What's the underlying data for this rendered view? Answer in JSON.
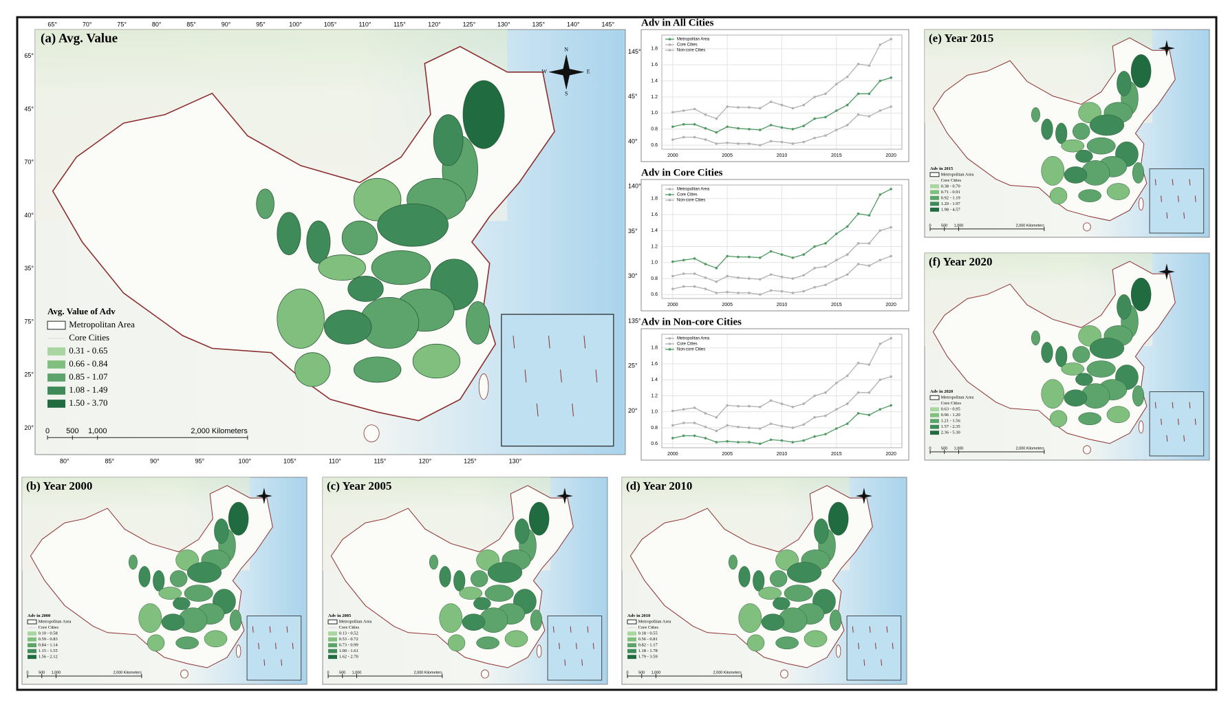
{
  "maps": [
    {
      "title": "(a) Avg. Value",
      "legend": {
        "title": "Avg. Value of Adv",
        "metro": "Metropolitan Area",
        "core": "Core Cities",
        "classes": [
          "0.31 - 0.65",
          "0.66 - 0.84",
          "0.85 - 1.07",
          "1.08 - 1.49",
          "1.50 - 3.70"
        ],
        "colors": [
          "#a9d6a0",
          "#80bf7e",
          "#5ca46c",
          "#3e8a58",
          "#216b40"
        ]
      },
      "scale": [
        "0",
        "500",
        "1,000",
        "2,000 Kilometers"
      ],
      "compass": [
        "N",
        "E",
        "S",
        "W"
      ],
      "lon_bottom": [
        "80°",
        "85°",
        "90°",
        "95°",
        "100°",
        "105°",
        "110°",
        "115°",
        "120°",
        "125°",
        "130°"
      ],
      "lon_top": [
        "65°",
        "70°",
        "75°",
        "80°",
        "85°",
        "90°",
        "95°",
        "100°",
        "105°",
        "110°",
        "115°",
        "120°",
        "125°",
        "130°",
        "135°",
        "140°",
        "145°"
      ],
      "lat_left": [
        "65°",
        "45°",
        "70°",
        "40°",
        "35°",
        "75°",
        "25°",
        "20°"
      ],
      "lat_right": [
        "145°",
        "45°",
        "40°",
        "140°",
        "35°",
        "30°",
        "135°",
        "25°",
        "20°"
      ]
    },
    {
      "title": "(b) Year 2000",
      "legend": {
        "title": "Adv in 2000",
        "metro": "Metropolitan Area",
        "core": "Core Cities",
        "classes": [
          "0.10 - 0.58",
          "0.59 - 0.83",
          "0.84 - 1.14",
          "1.15 - 1.55",
          "1.56 - 2.12"
        ],
        "colors": [
          "#a9d6a0",
          "#80bf7e",
          "#5ca46c",
          "#3e8a58",
          "#216b40"
        ]
      },
      "scale": [
        "0",
        "500",
        "1,000",
        "2,000 Kilometers"
      ]
    },
    {
      "title": "(c) Year 2005",
      "legend": {
        "title": "Adv in 2005",
        "metro": "Metropolitan Area",
        "core": "Core Cities",
        "classes": [
          "0.13 - 0.52",
          "0.53 - 0.72",
          "0.73 - 0.99",
          "1.00 - 1.61",
          "1.62 - 2.70"
        ],
        "colors": [
          "#a9d6a0",
          "#80bf7e",
          "#5ca46c",
          "#3e8a58",
          "#216b40"
        ]
      },
      "scale": [
        "0",
        "500",
        "1,000",
        "2,000 Kilometers"
      ]
    },
    {
      "title": "(d) Year 2010",
      "legend": {
        "title": "Adv in 2010",
        "metro": "Metropolitan Area",
        "core": "Core Cities",
        "classes": [
          "0.18 - 0.55",
          "0.56 - 0.81",
          "0.82 - 1.17",
          "1.18 - 1.78",
          "1.79 - 3.59"
        ],
        "colors": [
          "#a9d6a0",
          "#80bf7e",
          "#5ca46c",
          "#3e8a58",
          "#216b40"
        ]
      },
      "scale": [
        "0",
        "500",
        "1,000",
        "2,000 Kilometers"
      ]
    },
    {
      "title": "(e) Year 2015",
      "legend": {
        "title": "Adv in 2015",
        "metro": "Metropolitan Area",
        "core": "Core Cities",
        "classes": [
          "0.38 - 0.70",
          "0.71 - 0.91",
          "0.92 - 1.19",
          "1.20 - 1.97",
          "1.98 - 4.57"
        ],
        "colors": [
          "#a9d6a0",
          "#80bf7e",
          "#5ca46c",
          "#3e8a58",
          "#216b40"
        ]
      },
      "scale": [
        "0",
        "500",
        "1,000",
        "2,000 Kilometers"
      ]
    },
    {
      "title": "(f) Year 2020",
      "legend": {
        "title": "Adv in 2020",
        "metro": "Metropolitan Area",
        "core": "Core Cities",
        "classes": [
          "0.63 - 0.95",
          "0.96 - 1.20",
          "1.21 - 1.56",
          "1.57 - 2.35",
          "2.36 - 5.30"
        ],
        "colors": [
          "#a9d6a0",
          "#80bf7e",
          "#5ca46c",
          "#3e8a58",
          "#216b40"
        ]
      },
      "scale": [
        "0",
        "500",
        "1,000",
        "2,000 Kilometers"
      ]
    }
  ],
  "chart_data": [
    {
      "type": "line",
      "title": "Adv in All Cities",
      "x": [
        2000,
        2001,
        2002,
        2003,
        2004,
        2005,
        2006,
        2007,
        2008,
        2009,
        2010,
        2011,
        2012,
        2013,
        2014,
        2015,
        2016,
        2017,
        2018,
        2019,
        2020
      ],
      "series": [
        {
          "name": "Metropolitan Area",
          "color": "#4f9a62",
          "values": [
            0.83,
            0.86,
            0.86,
            0.81,
            0.76,
            0.83,
            0.81,
            0.8,
            0.79,
            0.85,
            0.82,
            0.8,
            0.84,
            0.93,
            0.95,
            1.03,
            1.1,
            1.24,
            1.24,
            1.4,
            1.44
          ]
        },
        {
          "name": "Core Cities",
          "color": "#b0b0b0",
          "values": [
            1.01,
            1.03,
            1.05,
            0.98,
            0.93,
            1.08,
            1.07,
            1.07,
            1.06,
            1.14,
            1.1,
            1.06,
            1.1,
            1.2,
            1.24,
            1.36,
            1.45,
            1.61,
            1.59,
            1.85,
            1.92
          ]
        },
        {
          "name": "Non-core Cities",
          "color": "#b0b0b0",
          "values": [
            0.67,
            0.7,
            0.7,
            0.67,
            0.62,
            0.63,
            0.62,
            0.62,
            0.6,
            0.65,
            0.64,
            0.62,
            0.64,
            0.69,
            0.72,
            0.79,
            0.85,
            0.98,
            0.96,
            1.03,
            1.08
          ]
        }
      ],
      "xlim": [
        1999,
        2021
      ],
      "xticks": [
        2000,
        2005,
        2010,
        2015,
        2020
      ],
      "ylim": [
        0.55,
        1.97
      ],
      "yticks": [
        0.6,
        0.8,
        {
          "value": 1.0,
          "label": "1.0"
        },
        1.2,
        1.4,
        1.6,
        1.8
      ],
      "grid": true
    },
    {
      "type": "line",
      "title": "Adv in Core Cities",
      "x": [
        2000,
        2001,
        2002,
        2003,
        2004,
        2005,
        2006,
        2007,
        2008,
        2009,
        2010,
        2011,
        2012,
        2013,
        2014,
        2015,
        2016,
        2017,
        2018,
        2019,
        2020
      ],
      "series": [
        {
          "name": "Metropolitan Area",
          "color": "#b0b0b0",
          "values": [
            0.83,
            0.86,
            0.86,
            0.81,
            0.76,
            0.83,
            0.81,
            0.8,
            0.79,
            0.85,
            0.82,
            0.8,
            0.84,
            0.93,
            0.95,
            1.03,
            1.1,
            1.24,
            1.24,
            1.4,
            1.44
          ]
        },
        {
          "name": "Core Cities",
          "color": "#4f9a62",
          "values": [
            1.01,
            1.03,
            1.05,
            0.98,
            0.93,
            1.08,
            1.07,
            1.07,
            1.06,
            1.14,
            1.1,
            1.06,
            1.1,
            1.2,
            1.24,
            1.36,
            1.45,
            1.61,
            1.59,
            1.85,
            1.92
          ]
        },
        {
          "name": "Non-core Cities",
          "color": "#b0b0b0",
          "values": [
            0.67,
            0.7,
            0.7,
            0.67,
            0.62,
            0.63,
            0.62,
            0.62,
            0.6,
            0.65,
            0.64,
            0.62,
            0.64,
            0.69,
            0.72,
            0.79,
            0.85,
            0.98,
            0.96,
            1.03,
            1.08
          ]
        }
      ],
      "xlim": [
        1999,
        2021
      ],
      "xticks": [
        2000,
        2005,
        2010,
        2015,
        2020
      ],
      "ylim": [
        0.55,
        1.97
      ],
      "yticks": [
        0.6,
        0.8,
        {
          "value": 1.0,
          "label": "1.0"
        },
        1.2,
        1.4,
        1.6,
        1.8
      ],
      "grid": true
    },
    {
      "type": "line",
      "title": "Adv in Non-core Cities",
      "x": [
        2000,
        2001,
        2002,
        2003,
        2004,
        2005,
        2006,
        2007,
        2008,
        2009,
        2010,
        2011,
        2012,
        2013,
        2014,
        2015,
        2016,
        2017,
        2018,
        2019,
        2020
      ],
      "series": [
        {
          "name": "Metropolitan Area",
          "color": "#b0b0b0",
          "values": [
            0.83,
            0.86,
            0.86,
            0.81,
            0.76,
            0.83,
            0.81,
            0.8,
            0.79,
            0.85,
            0.82,
            0.8,
            0.84,
            0.93,
            0.95,
            1.03,
            1.1,
            1.24,
            1.24,
            1.4,
            1.44
          ]
        },
        {
          "name": "Core Cities",
          "color": "#b0b0b0",
          "values": [
            1.01,
            1.03,
            1.05,
            0.98,
            0.93,
            1.08,
            1.07,
            1.07,
            1.06,
            1.14,
            1.1,
            1.06,
            1.1,
            1.2,
            1.24,
            1.36,
            1.45,
            1.61,
            1.59,
            1.85,
            1.92
          ]
        },
        {
          "name": "Non-core Cities",
          "color": "#4f9a62",
          "values": [
            0.67,
            0.7,
            0.7,
            0.67,
            0.62,
            0.63,
            0.62,
            0.62,
            0.6,
            0.65,
            0.64,
            0.62,
            0.64,
            0.69,
            0.72,
            0.79,
            0.85,
            0.98,
            0.96,
            1.03,
            1.08
          ]
        }
      ],
      "xlim": [
        1999,
        2021
      ],
      "xticks": [
        2000,
        2005,
        2010,
        2015,
        2020
      ],
      "ylim": [
        0.55,
        1.97
      ],
      "yticks": [
        0.6,
        0.8,
        {
          "value": 1.0,
          "label": "1.0"
        },
        1.2,
        1.4,
        1.6,
        1.8
      ],
      "grid": true
    }
  ]
}
